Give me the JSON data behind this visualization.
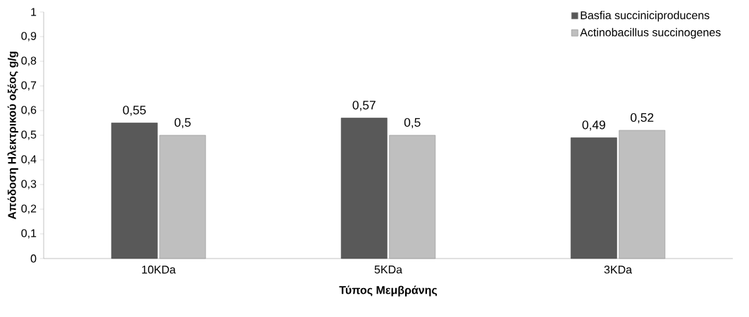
{
  "chart_data": {
    "type": "bar",
    "xlabel": "Τύπος Μεμβράνης",
    "ylabel": "Απόδοση Ηλεκτρικού οξέος g/g",
    "categories": [
      "10KDa",
      "5KDa",
      "3KDa"
    ],
    "series": [
      {
        "name": "Basfia succiniciproducens",
        "color": "#595959",
        "values": [
          0.55,
          0.57,
          0.49
        ],
        "value_labels": [
          "0,55",
          "0,57",
          "0,49"
        ]
      },
      {
        "name": "Actinobacillus succinogenes",
        "color": "#bfbfbf",
        "values": [
          0.5,
          0.5,
          0.52
        ],
        "value_labels": [
          "0,5",
          "0,5",
          "0,52"
        ]
      }
    ],
    "ylim": [
      0,
      1
    ],
    "yticks": [
      {
        "value": 0,
        "label": "0"
      },
      {
        "value": 0.1,
        "label": "0,1"
      },
      {
        "value": 0.2,
        "label": "0,2"
      },
      {
        "value": 0.3,
        "label": "0,3"
      },
      {
        "value": 0.4,
        "label": "0,4"
      },
      {
        "value": 0.5,
        "label": "0,5"
      },
      {
        "value": 0.6,
        "label": "0,6"
      },
      {
        "value": 0.7,
        "label": "0,7"
      },
      {
        "value": 0.8,
        "label": "0,8"
      },
      {
        "value": 0.9,
        "label": "0,9"
      },
      {
        "value": 1,
        "label": "1"
      }
    ],
    "grid": false,
    "legend": "top right"
  }
}
